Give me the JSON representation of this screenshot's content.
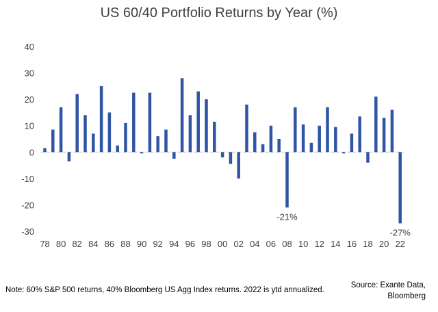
{
  "chart_data": {
    "type": "bar",
    "title": "US 60/40 Portfolio Returns by Year (%)",
    "xlabel": "",
    "ylabel": "",
    "ylim": [
      -30,
      40
    ],
    "yticks": [
      "40",
      "30",
      "20",
      "10",
      "0",
      "-10",
      "-20",
      "-30"
    ],
    "ytick_values": [
      40,
      30,
      20,
      10,
      0,
      -10,
      -20,
      -30
    ],
    "categories": [
      "78",
      "79",
      "80",
      "81",
      "82",
      "83",
      "84",
      "85",
      "86",
      "87",
      "88",
      "89",
      "90",
      "91",
      "92",
      "93",
      "94",
      "95",
      "96",
      "97",
      "98",
      "99",
      "00",
      "01",
      "02",
      "03",
      "04",
      "05",
      "06",
      "07",
      "08",
      "09",
      "10",
      "11",
      "12",
      "13",
      "14",
      "15",
      "16",
      "17",
      "18",
      "19",
      "20",
      "21",
      "22"
    ],
    "xtick_labels": [
      "78",
      "80",
      "82",
      "84",
      "86",
      "88",
      "90",
      "92",
      "94",
      "96",
      "98",
      "00",
      "02",
      "04",
      "06",
      "08",
      "10",
      "12",
      "14",
      "16",
      "18",
      "20",
      "22"
    ],
    "values": [
      1.5,
      8.5,
      17,
      -3.5,
      22,
      14,
      7,
      25,
      15,
      2.5,
      11,
      22.5,
      -0.5,
      22.5,
      6,
      8.5,
      -2.5,
      28,
      14,
      23,
      20,
      11.5,
      -2,
      -4.5,
      -10,
      18,
      7.5,
      3,
      10,
      5,
      -21,
      17,
      10.5,
      3.5,
      10,
      17,
      9.5,
      -0.5,
      7,
      13.5,
      -4,
      21,
      13,
      16,
      -27
    ],
    "annotations": [
      {
        "category": "08",
        "text": "-21%"
      },
      {
        "category": "22",
        "text": "-27%"
      }
    ],
    "series_color": "#2f55a4",
    "grid": false,
    "legend": "none"
  },
  "footer": {
    "note": "Note: 60% S&P 500 returns, 40% Bloomberg US Agg Index returns. 2022 is ytd annualized.",
    "source_line1": "Source: Exante Data,",
    "source_line2": "Bloomberg"
  }
}
